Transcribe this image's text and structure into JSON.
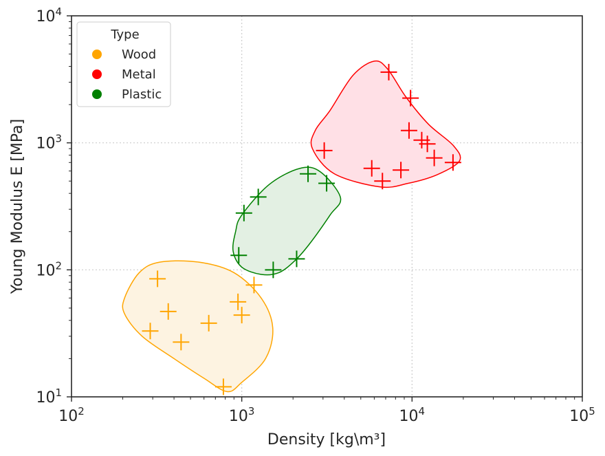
{
  "chart_data": {
    "type": "scatter",
    "xscale": "log",
    "yscale": "log",
    "xlim": [
      100,
      100000
    ],
    "ylim": [
      10,
      10000
    ],
    "xlabel": "Density  [kg\\m³]",
    "ylabel": "Young Modulus E [MPa]",
    "x_ticks": [
      {
        "base": "10",
        "exp": "2",
        "value": 100
      },
      {
        "base": "10",
        "exp": "3",
        "value": 1000
      },
      {
        "base": "10",
        "exp": "4",
        "value": 10000
      },
      {
        "base": "10",
        "exp": "5",
        "value": 100000
      }
    ],
    "y_ticks": [
      {
        "base": "10",
        "exp": "1",
        "value": 10
      },
      {
        "base": "10",
        "exp": "2",
        "value": 100
      },
      {
        "base": "10",
        "exp": "3",
        "value": 1000
      },
      {
        "base": "10",
        "exp": "4",
        "value": 10000
      }
    ],
    "grid": true,
    "marker": "+",
    "legend": {
      "title": "Type",
      "placement": "top-left",
      "entries": [
        {
          "label": "Wood",
          "color": "#FFA500"
        },
        {
          "label": "Metal",
          "color": "#FF0000"
        },
        {
          "label": "Plastic",
          "color": "#008000"
        }
      ]
    },
    "series": [
      {
        "name": "Wood",
        "color": "#FFA500",
        "fill": "#FDF3E1",
        "points": [
          {
            "x": 320,
            "y": 85
          },
          {
            "x": 370,
            "y": 47
          },
          {
            "x": 290,
            "y": 33
          },
          {
            "x": 440,
            "y": 27
          },
          {
            "x": 640,
            "y": 38
          },
          {
            "x": 950,
            "y": 56
          },
          {
            "x": 1000,
            "y": 44
          },
          {
            "x": 1180,
            "y": 76
          },
          {
            "x": 780,
            "y": 12
          }
        ]
      },
      {
        "name": "Metal",
        "color": "#FF0000",
        "fill": "#FFE0E6",
        "points": [
          {
            "x": 7300,
            "y": 3600
          },
          {
            "x": 9800,
            "y": 2250
          },
          {
            "x": 9600,
            "y": 1250
          },
          {
            "x": 11400,
            "y": 1050
          },
          {
            "x": 12300,
            "y": 980
          },
          {
            "x": 13500,
            "y": 760
          },
          {
            "x": 17400,
            "y": 700
          },
          {
            "x": 5800,
            "y": 630
          },
          {
            "x": 8600,
            "y": 610
          },
          {
            "x": 6700,
            "y": 500
          },
          {
            "x": 3050,
            "y": 870
          }
        ]
      },
      {
        "name": "Plastic",
        "color": "#008000",
        "fill": "#E3F0E3",
        "points": [
          {
            "x": 2450,
            "y": 570
          },
          {
            "x": 3150,
            "y": 480
          },
          {
            "x": 1250,
            "y": 375
          },
          {
            "x": 1030,
            "y": 280
          },
          {
            "x": 960,
            "y": 130
          },
          {
            "x": 1530,
            "y": 100
          },
          {
            "x": 2100,
            "y": 122
          }
        ]
      }
    ],
    "regions": [
      {
        "name": "Wood",
        "stroke": "#FFA500",
        "fill": "#FDF3E1",
        "outline": [
          [
            205,
            60
          ],
          [
            250,
            95
          ],
          [
            330,
            115
          ],
          [
            560,
            115
          ],
          [
            900,
            95
          ],
          [
            1300,
            60
          ],
          [
            1520,
            35
          ],
          [
            1380,
            20
          ],
          [
            1000,
            13
          ],
          [
            820,
            11
          ],
          [
            600,
            14
          ],
          [
            400,
            20
          ],
          [
            260,
            30
          ],
          [
            205,
            45
          ]
        ]
      },
      {
        "name": "Plastic",
        "stroke": "#008000",
        "fill": "#E3F0E3",
        "outline": [
          [
            1000,
            270
          ],
          [
            1450,
            470
          ],
          [
            2200,
            630
          ],
          [
            2900,
            590
          ],
          [
            3800,
            370
          ],
          [
            3300,
            270
          ],
          [
            2500,
            160
          ],
          [
            2050,
            118
          ],
          [
            1650,
            95
          ],
          [
            1300,
            92
          ],
          [
            1000,
            105
          ],
          [
            890,
            140
          ],
          [
            920,
            200
          ]
        ]
      },
      {
        "name": "Metal",
        "stroke": "#FF0000",
        "fill": "#FFE0E6",
        "outline": [
          [
            3300,
            1800
          ],
          [
            4500,
            3400
          ],
          [
            6000,
            4400
          ],
          [
            7200,
            3800
          ],
          [
            9200,
            2300
          ],
          [
            12500,
            1400
          ],
          [
            17500,
            950
          ],
          [
            19000,
            720
          ],
          [
            14000,
            560
          ],
          [
            9500,
            480
          ],
          [
            6500,
            450
          ],
          [
            3500,
            570
          ],
          [
            2600,
            900
          ],
          [
            2700,
            1250
          ]
        ]
      }
    ]
  }
}
